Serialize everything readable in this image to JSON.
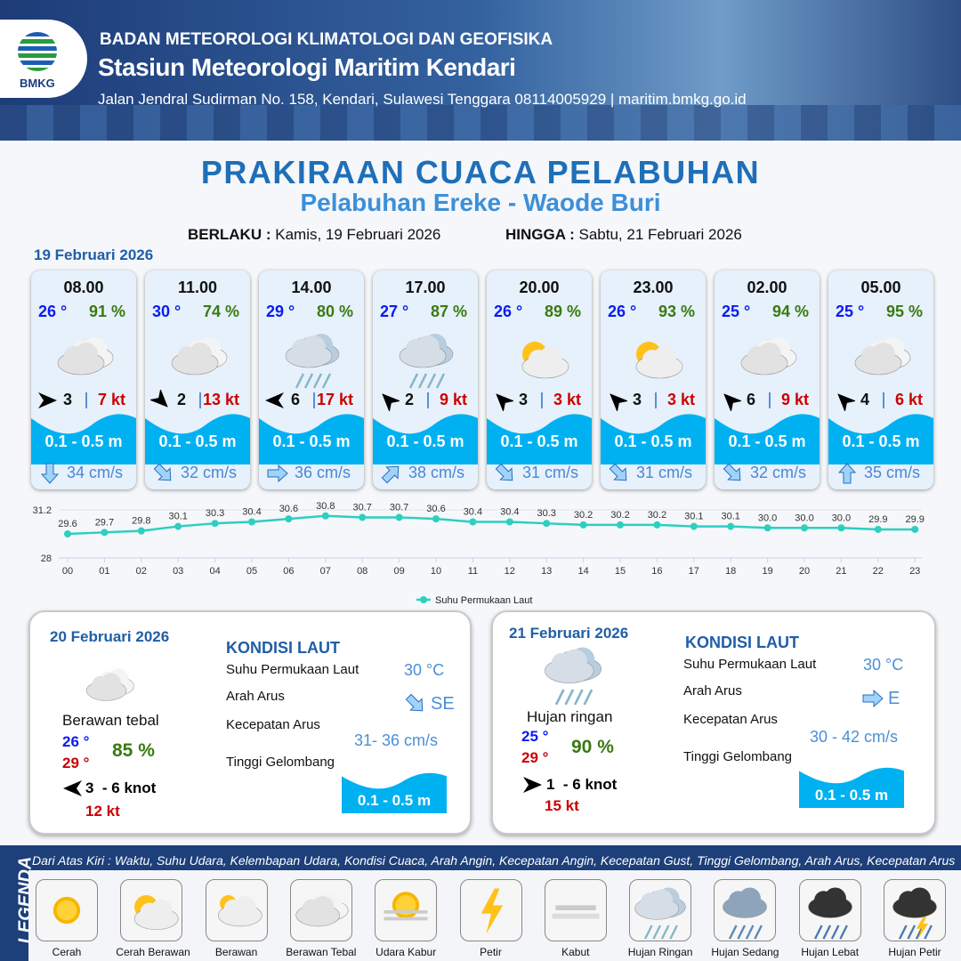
{
  "header": {
    "org": "BADAN METEOROLOGI KLIMATOLOGI DAN GEOFISIKA",
    "station": "Stasiun Meteorologi Maritim Kendari",
    "address": "Jalan Jendral Sudirman No. 158, Kendari, Sulawesi Tenggara  08114005929 | maritim.bmkg.go.id",
    "logo_text": "BMKG"
  },
  "title": "PRAKIRAAN CUACA PELABUHAN",
  "subtitle": "Pelabuhan Ereke - Waode Buri",
  "validity": {
    "from_label": "BERLAKU :",
    "from": "Kamis, 19 Februari 2026",
    "to_label": "HINGGA :",
    "to": "Sabtu, 21 Februari 2026"
  },
  "day1": {
    "date": "19 Februari 2026",
    "cards": [
      {
        "time": "08.00",
        "temp": "26 °",
        "rh": "91 %",
        "icon": "berawan-tebal",
        "wind_dir_deg": 90,
        "wind": "3",
        "gust": "7 kt",
        "wave": "0.1 - 0.5 m",
        "cur_dir_deg": 180,
        "current": "34 cm/s"
      },
      {
        "time": "11.00",
        "temp": "30 °",
        "rh": "74 %",
        "icon": "berawan-tebal",
        "wind_dir_deg": 135,
        "wind": "2",
        "gust": "13 kt",
        "wave": "0.1 - 0.5 m",
        "cur_dir_deg": 135,
        "current": "32 cm/s"
      },
      {
        "time": "14.00",
        "temp": "29 °",
        "rh": "80 %",
        "icon": "hujan-ringan",
        "wind_dir_deg": 270,
        "wind": "6",
        "gust": "17 kt",
        "wave": "0.1 - 0.5 m",
        "cur_dir_deg": 90,
        "current": "36 cm/s"
      },
      {
        "time": "17.00",
        "temp": "27 °",
        "rh": "87 %",
        "icon": "hujan-ringan",
        "wind_dir_deg": 315,
        "wind": "2",
        "gust": "9 kt",
        "wave": "0.1 - 0.5 m",
        "cur_dir_deg": 45,
        "current": "38 cm/s"
      },
      {
        "time": "20.00",
        "temp": "26 °",
        "rh": "89 %",
        "icon": "cerah-berawan",
        "wind_dir_deg": 315,
        "wind": "3",
        "gust": "3 kt",
        "wave": "0.1 - 0.5 m",
        "cur_dir_deg": 135,
        "current": "31 cm/s"
      },
      {
        "time": "23.00",
        "temp": "26 °",
        "rh": "93 %",
        "icon": "cerah-berawan",
        "wind_dir_deg": 315,
        "wind": "3",
        "gust": "3 kt",
        "wave": "0.1 - 0.5 m",
        "cur_dir_deg": 135,
        "current": "31 cm/s"
      },
      {
        "time": "02.00",
        "temp": "25 °",
        "rh": "94 %",
        "icon": "berawan-tebal",
        "wind_dir_deg": 315,
        "wind": "6",
        "gust": "9 kt",
        "wave": "0.1 - 0.5 m",
        "cur_dir_deg": 135,
        "current": "32 cm/s"
      },
      {
        "time": "05.00",
        "temp": "25 °",
        "rh": "95 %",
        "icon": "berawan-tebal",
        "wind_dir_deg": 315,
        "wind": "4",
        "gust": "6 kt",
        "wave": "0.1 - 0.5 m",
        "cur_dir_deg": 0,
        "current": "35 cm/s"
      }
    ]
  },
  "chart_data": {
    "type": "line",
    "categories": [
      "00",
      "01",
      "02",
      "03",
      "04",
      "05",
      "06",
      "07",
      "08",
      "09",
      "10",
      "11",
      "12",
      "13",
      "14",
      "15",
      "16",
      "17",
      "18",
      "19",
      "20",
      "21",
      "22",
      "23"
    ],
    "series": [
      {
        "name": "Suhu Permukaan Laut",
        "values": [
          29.6,
          29.7,
          29.8,
          30.1,
          30.3,
          30.4,
          30.6,
          30.8,
          30.7,
          30.7,
          30.6,
          30.4,
          30.4,
          30.3,
          30.2,
          30.2,
          30.2,
          30.1,
          30.1,
          30.0,
          30.0,
          30.0,
          29.9,
          29.9
        ],
        "color": "#2ccfc0"
      }
    ],
    "ylim": [
      28,
      31.2
    ],
    "yticks": [
      "31.2",
      "28"
    ],
    "legend": "bottom"
  },
  "days": [
    {
      "date": "20 Februari 2026",
      "cond": "Berawan tebal",
      "icon": "berawan-tebal",
      "tmin": "26 °",
      "tmax": "29 °",
      "rh": "85 %",
      "wind_dir_deg": 270,
      "wind": "3  - 6 knot",
      "gust": "12 kt",
      "k_title": "KONDISI LAUT",
      "sst_label": "Suhu Permukaan Laut",
      "sst": "30 °C",
      "cur_dir_label": "Arah Arus",
      "cur_dir": "SE",
      "cur_dir_deg": 135,
      "cur_speed_label": "Kecepatan Arus",
      "cur_speed": "31- 36 cm/s",
      "wave_label": "Tinggi Gelombang",
      "wave": "0.1 - 0.5 m"
    },
    {
      "date": "21 Februari 2026",
      "cond": "Hujan ringan",
      "icon": "hujan-ringan",
      "tmin": "25 °",
      "tmax": "29 °",
      "rh": "90 %",
      "wind_dir_deg": 90,
      "wind": "1  - 6 knot",
      "gust": "15 kt",
      "k_title": "KONDISI LAUT",
      "sst_label": "Suhu Permukaan Laut",
      "sst": "30 °C",
      "cur_dir_label": "Arah Arus",
      "cur_dir": "E",
      "cur_dir_deg": 90,
      "cur_speed_label": "Kecepatan Arus",
      "cur_speed": "30 - 42 cm/s",
      "wave_label": "Tinggi Gelombang",
      "wave": "0.1 - 0.5 m"
    }
  ],
  "legend": {
    "title": "LEGENDA",
    "caption": "Dari Atas Kiri : Waktu, Suhu Udara, Kelembapan Udara, Kondisi Cuaca, Arah Angin, Kecepatan Angin, Kecepatan Gust, Tinggi Gelombang, Arah Arus, Kecepatan Arus",
    "items": [
      {
        "label": "Cerah",
        "icon": "cerah"
      },
      {
        "label": "Cerah Berawan",
        "icon": "cerah-berawan"
      },
      {
        "label": "Berawan",
        "icon": "berawan"
      },
      {
        "label": "Berawan Tebal",
        "icon": "berawan-tebal"
      },
      {
        "label": "Udara Kabur",
        "icon": "udara-kabur"
      },
      {
        "label": "Petir",
        "icon": "petir"
      },
      {
        "label": "Kabut",
        "icon": "kabut"
      },
      {
        "label": "Hujan Ringan",
        "icon": "hujan-ringan"
      },
      {
        "label": "Hujan Sedang",
        "icon": "hujan-sedang"
      },
      {
        "label": "Hujan Lebat",
        "icon": "hujan-lebat"
      },
      {
        "label": "Hujan Petir",
        "icon": "hujan-petir"
      }
    ]
  }
}
